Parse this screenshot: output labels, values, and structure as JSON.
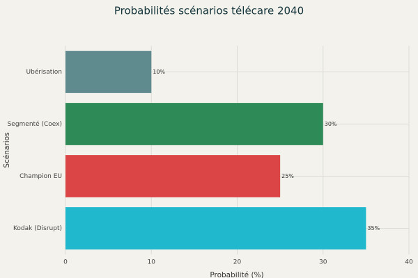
{
  "chart_data": {
    "type": "bar",
    "orientation": "horizontal",
    "title": "Probabilités scénarios télécare 2040",
    "x_label": "Probabilité (%)",
    "y_label": "Scénarios",
    "categories": [
      "Ubérisation",
      "Segmenté (Coex)",
      "Champion EU",
      "Kodak (Disrupt)"
    ],
    "values": [
      10,
      30,
      25,
      35
    ],
    "value_labels": [
      "10%",
      "30%",
      "25%",
      "35%"
    ],
    "colors": [
      "#5f8a8e",
      "#2e8b57",
      "#db4545",
      "#1fb8cd"
    ],
    "xlim": [
      0,
      40
    ],
    "xticks": [
      0,
      10,
      20,
      30,
      40
    ],
    "grid": true
  }
}
